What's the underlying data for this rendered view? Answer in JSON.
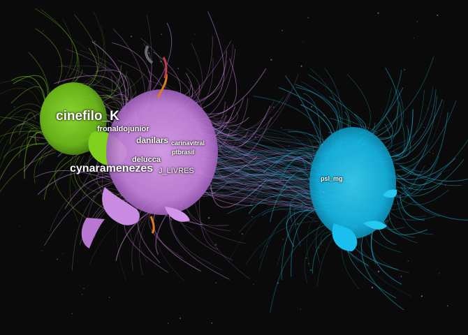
{
  "graph": {
    "background": "#0a0a0a",
    "clusters": [
      {
        "id": "green",
        "color": "#76c81e"
      },
      {
        "id": "purple",
        "color": "#d98ef0"
      },
      {
        "id": "cyan",
        "color": "#1ec6f0"
      },
      {
        "id": "orange",
        "color": "#e07b1e"
      },
      {
        "id": "red",
        "color": "#c03c48"
      },
      {
        "id": "gray",
        "color": "#7a7a7a"
      }
    ],
    "labels": {
      "cinefilo": "cinefilo_K",
      "fronaldo": "fronaldojunior",
      "danilars": "danilars",
      "carinavitral": "carinavitral",
      "ptbrasil": "ptbrasil",
      "delucca": "delucca",
      "cynara": "cynaramenezes",
      "jlivres": "J_LIVRES",
      "pslmg": "psl_mg"
    }
  }
}
